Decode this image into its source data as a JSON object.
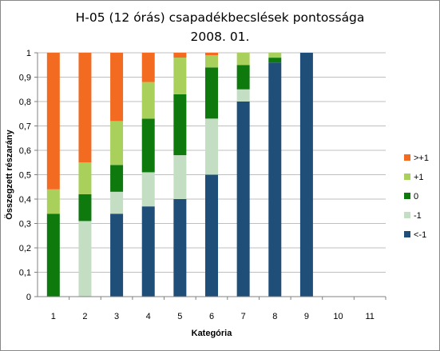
{
  "chart_data": {
    "type": "bar",
    "stacked": true,
    "title": "H-05 (12 órás) csapadékbecslések pontossága",
    "subtitle": "2008. 01.",
    "xlabel": "Kategória",
    "ylabel": "Összegzett részarány",
    "ylim": [
      0,
      1
    ],
    "y_ticks": [
      "0",
      "0,1",
      "0,2",
      "0,3",
      "0,4",
      "0,5",
      "0,6",
      "0,7",
      "0,8",
      "0,9",
      "1"
    ],
    "categories": [
      "1",
      "2",
      "3",
      "4",
      "5",
      "6",
      "7",
      "8",
      "9",
      "10",
      "11"
    ],
    "grid": true,
    "legend_position": "right",
    "series": [
      {
        "name": "<-1",
        "color": "#1F4E79",
        "values": [
          0,
          0,
          0.34,
          0.37,
          0.4,
          0.5,
          0.8,
          0.96,
          1.0,
          0,
          0
        ]
      },
      {
        "name": "-1",
        "color": "#C4DEC4",
        "values": [
          0,
          0.31,
          0.09,
          0.14,
          0.18,
          0.23,
          0.05,
          0,
          0,
          0,
          0
        ]
      },
      {
        "name": "0",
        "color": "#0E7A0E",
        "values": [
          0.34,
          0.11,
          0.11,
          0.22,
          0.25,
          0.21,
          0.1,
          0.02,
          0,
          0,
          0
        ]
      },
      {
        "name": "+1",
        "color": "#A9D05A",
        "values": [
          0.1,
          0.13,
          0.18,
          0.15,
          0.15,
          0.05,
          0.05,
          0.02,
          0,
          0,
          0
        ]
      },
      {
        "name": ">+1",
        "color": "#F26B20",
        "values": [
          0.56,
          0.45,
          0.28,
          0.12,
          0.02,
          0.01,
          0,
          0,
          0,
          0,
          0
        ]
      }
    ]
  }
}
